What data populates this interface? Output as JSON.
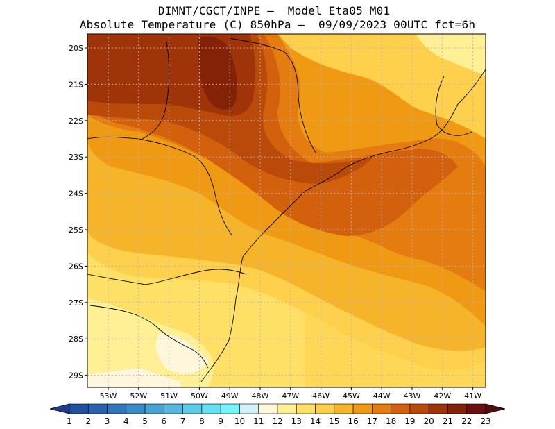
{
  "title": {
    "line1": "DIMNT/CGCT/INPE –  Model Eta05_M01_",
    "line2": "Absolute Temperature (C) 850hPa –  09/09/2023 00UTC fct=6h"
  },
  "map": {
    "lat_labels": [
      "20S",
      "21S",
      "22S",
      "23S",
      "24S",
      "25S",
      "26S",
      "27S",
      "28S",
      "29S"
    ],
    "lon_labels": [
      "53W",
      "52W",
      "51W",
      "50W",
      "49W",
      "48W",
      "47W",
      "46W",
      "45W",
      "44W",
      "43W",
      "42W",
      "41W"
    ]
  },
  "colorbar": {
    "labels": [
      "1",
      "2",
      "3",
      "4",
      "5",
      "6",
      "7",
      "8",
      "9",
      "10",
      "11",
      "12",
      "13",
      "14",
      "15",
      "16",
      "17",
      "18",
      "19",
      "20",
      "21",
      "22",
      "23"
    ],
    "colors": [
      "#1e3c8c",
      "#2150a0",
      "#2864ae",
      "#2f78bc",
      "#3a8cc8",
      "#48a2d4",
      "#56b8e0",
      "#5ecce8",
      "#66e0f0",
      "#73f5fa",
      "#d2f2fa",
      "#fff6dc",
      "#fff096",
      "#ffe066",
      "#ffd04c",
      "#f6b42a",
      "#f09a14",
      "#e47c10",
      "#d2600c",
      "#b94a0a",
      "#9e3408",
      "#842208",
      "#6a1010",
      "#520a10"
    ]
  },
  "colors": {
    "c12": "#fff6dc",
    "c13": "#fff096",
    "c14": "#ffe066",
    "c15": "#ffd04c",
    "c16": "#f6b42a",
    "c17": "#f09a14",
    "c18": "#e47c10",
    "c19": "#d2600c",
    "c20": "#b94a0a",
    "c21": "#9e3408",
    "c22": "#842208"
  }
}
